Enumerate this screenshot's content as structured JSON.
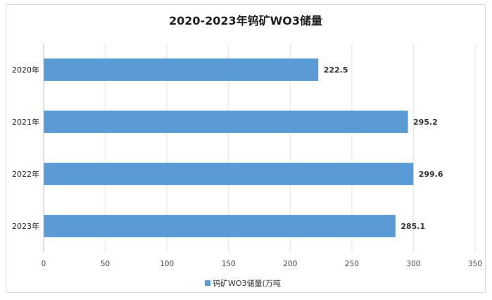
{
  "chart_data": {
    "type": "bar",
    "orientation": "horizontal",
    "title": "2020-2023年钨矿WO3储量",
    "categories": [
      "2020年",
      "2021年",
      "2022年",
      "2023年"
    ],
    "series": [
      {
        "name": "钨矿WO3储量(万吨",
        "values": [
          222.5,
          295.2,
          299.6,
          285.1
        ],
        "color": "#5b9bd5"
      }
    ],
    "data_labels": [
      "222.5",
      "295.2",
      "299.6",
      "285.1"
    ],
    "xlim": [
      0,
      350
    ],
    "x_ticks": [
      0,
      50,
      100,
      150,
      200,
      250,
      300,
      350
    ],
    "grid": true,
    "legend_position": "bottom"
  }
}
